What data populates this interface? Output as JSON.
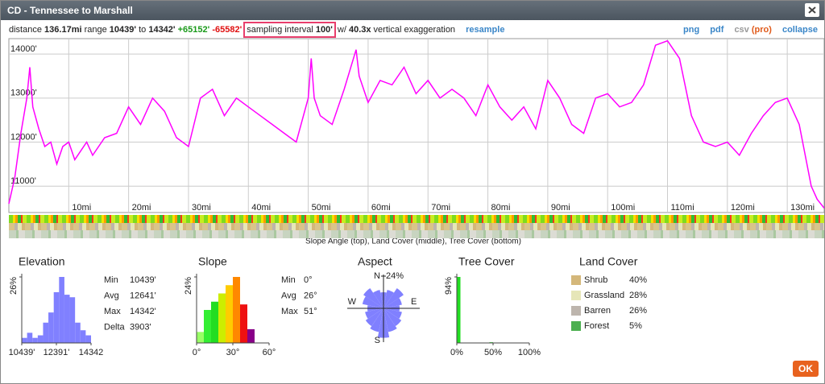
{
  "window": {
    "title": "CD - Tennessee to Marshall",
    "ok": "OK"
  },
  "stats_line": {
    "distance_label": "distance",
    "distance": "136.17mi",
    "range_label": "range",
    "range_min": "10439'",
    "to": "to",
    "range_max": "14342'",
    "gain": "+65152'",
    "loss": "-65582'",
    "sampling_label": "sampling interval",
    "sampling": "100'",
    "with": "w/",
    "exaggeration": "40.3x",
    "exaggeration_label": "vertical exaggeration",
    "resample": "resample"
  },
  "links": {
    "png": "png",
    "pdf": "pdf",
    "csv": "csv",
    "pro": "(pro)",
    "collapse": "collapse"
  },
  "strip_caption": "Slope Angle (top), Land Cover (middle), Tree Cover (bottom)",
  "stats": {
    "elevation": [
      [
        "Min",
        "10439'"
      ],
      [
        "Avg",
        "12641'"
      ],
      [
        "Max",
        "14342'"
      ],
      [
        "Delta",
        "3903'"
      ]
    ],
    "slope": [
      [
        "Min",
        "0°"
      ],
      [
        "Avg",
        "26°"
      ],
      [
        "Max",
        "51°"
      ]
    ]
  },
  "land_cover": {
    "title": "Land Cover",
    "items": [
      {
        "name": "Shrub",
        "percent": "40%",
        "color": "#d4b77a"
      },
      {
        "name": "Grassland",
        "percent": "28%",
        "color": "#e6e6b8"
      },
      {
        "name": "Barren",
        "percent": "26%",
        "color": "#bdb5ad"
      },
      {
        "name": "Forest",
        "percent": "5%",
        "color": "#4caf50"
      }
    ]
  },
  "chart_data": [
    {
      "type": "line",
      "color": "#ff00ff",
      "grid": true,
      "x": [
        0,
        1,
        2,
        3,
        3.5,
        4,
        5,
        6,
        7,
        8,
        9,
        10,
        11,
        12,
        13,
        14,
        16,
        18,
        20,
        22,
        24,
        26,
        28,
        30,
        32,
        34,
        36,
        38,
        40,
        42,
        44,
        46,
        48,
        50,
        50.5,
        51,
        52,
        54,
        56,
        58,
        58.5,
        60,
        62,
        64,
        66,
        68,
        70,
        72,
        74,
        76,
        78,
        80,
        82,
        84,
        86,
        88,
        90,
        92,
        94,
        96,
        98,
        100,
        102,
        104,
        106,
        108,
        110,
        112,
        114,
        116,
        118,
        120,
        122,
        124,
        126,
        128,
        130,
        132,
        134,
        135,
        136.17
      ],
      "values": [
        10600,
        11200,
        12200,
        13000,
        13700,
        12800,
        12300,
        11900,
        12000,
        11500,
        11900,
        12000,
        11600,
        11800,
        12000,
        11700,
        12100,
        12200,
        12800,
        12400,
        13000,
        12700,
        12100,
        11900,
        13000,
        13200,
        12600,
        13000,
        12800,
        12600,
        12400,
        12200,
        12000,
        13000,
        13900,
        13000,
        12600,
        12400,
        13200,
        14100,
        13500,
        12900,
        13400,
        13300,
        13700,
        13100,
        13400,
        13000,
        13200,
        13000,
        12600,
        13300,
        12800,
        12500,
        12800,
        12300,
        13400,
        13000,
        12400,
        12200,
        13000,
        13100,
        12800,
        12900,
        13300,
        14200,
        14300,
        13900,
        12600,
        12000,
        11900,
        12000,
        11700,
        12200,
        12600,
        12900,
        13000,
        12400,
        11000,
        10700,
        10500
      ],
      "xlim": [
        0,
        136.17
      ],
      "ylim": [
        10400,
        14350
      ],
      "xticks": [
        {
          "value": 10,
          "label": "10mi"
        },
        {
          "value": 20,
          "label": "20mi"
        },
        {
          "value": 30,
          "label": "30mi"
        },
        {
          "value": 40,
          "label": "40mi"
        },
        {
          "value": 50,
          "label": "50mi"
        },
        {
          "value": 60,
          "label": "60mi"
        },
        {
          "value": 70,
          "label": "70mi"
        },
        {
          "value": 80,
          "label": "80mi"
        },
        {
          "value": 90,
          "label": "90mi"
        },
        {
          "value": 100,
          "label": "100mi"
        },
        {
          "value": 110,
          "label": "110mi"
        },
        {
          "value": 120,
          "label": "120mi"
        },
        {
          "value": 130,
          "label": "130mi"
        }
      ],
      "yticks": [
        {
          "value": 11000,
          "label": "11000'"
        },
        {
          "value": 12000,
          "label": "12000'"
        },
        {
          "value": 13000,
          "label": "13000'"
        },
        {
          "value": 14000,
          "label": "14000'"
        }
      ]
    },
    {
      "type": "histogram",
      "title": "Elevation",
      "color": "#8080ff",
      "bins": [
        10439,
        10739,
        11040,
        11340,
        11640,
        11940,
        12241,
        12541,
        12841,
        13141,
        13442,
        13742,
        14042,
        14342
      ],
      "values": [
        2,
        4,
        2,
        3,
        8,
        12,
        20,
        26,
        19,
        18,
        8,
        5,
        3
      ],
      "xlim": [
        10439,
        14342
      ],
      "ylim": [
        0,
        26
      ],
      "xticks": [
        {
          "value": 10439,
          "label": "10439'"
        },
        {
          "value": 12391,
          "label": "12391'"
        },
        {
          "value": 14342,
          "label": "14342"
        }
      ],
      "yticks": [
        {
          "value": 26,
          "label": "26%"
        }
      ]
    },
    {
      "type": "histogram",
      "title": "Slope",
      "colors": [
        "#99ff66",
        "#33ee33",
        "#22dd22",
        "#ccee00",
        "#ffcc00",
        "#ff8800",
        "#ee1111",
        "#880088"
      ],
      "bins": [
        0,
        6,
        12,
        18,
        24,
        30,
        36,
        42,
        48
      ],
      "values": [
        4,
        12,
        15,
        18,
        21,
        24,
        14,
        5
      ],
      "xlim": [
        0,
        60
      ],
      "ylim": [
        0,
        24
      ],
      "xticks": [
        {
          "value": 0,
          "label": "0°"
        },
        {
          "value": 30,
          "label": "30°"
        },
        {
          "value": 60,
          "label": "60°"
        }
      ],
      "yticks": [
        {
          "value": 24,
          "label": "24%"
        }
      ]
    },
    {
      "type": "rose",
      "title": "Aspect",
      "color": "#8080ff",
      "values": [
        12,
        14,
        18,
        14,
        12,
        14,
        16,
        18,
        22,
        18,
        16,
        14,
        12,
        16,
        18,
        14
      ],
      "rlim": [
        0,
        24
      ],
      "rticks": [
        {
          "value": 24,
          "label": "24%"
        }
      ],
      "directions": [
        "N",
        "E",
        "S",
        "W"
      ]
    },
    {
      "type": "histogram",
      "title": "Tree Cover",
      "color": "#22dd22",
      "bins": [
        0,
        5,
        10,
        15,
        20,
        25,
        30,
        35,
        40,
        45,
        50,
        55,
        60,
        65,
        70,
        75,
        80,
        85,
        90,
        95,
        100
      ],
      "values": [
        94,
        0,
        0,
        0,
        0,
        0,
        0,
        0,
        0,
        1,
        0,
        0,
        0,
        0,
        0,
        0,
        0,
        0,
        0,
        0
      ],
      "xlim": [
        0,
        100
      ],
      "ylim": [
        0,
        94
      ],
      "xticks": [
        {
          "value": 0,
          "label": "0%"
        },
        {
          "value": 50,
          "label": "50%"
        },
        {
          "value": 100,
          "label": "100%"
        }
      ],
      "yticks": [
        {
          "value": 94,
          "label": "94%"
        }
      ]
    }
  ]
}
